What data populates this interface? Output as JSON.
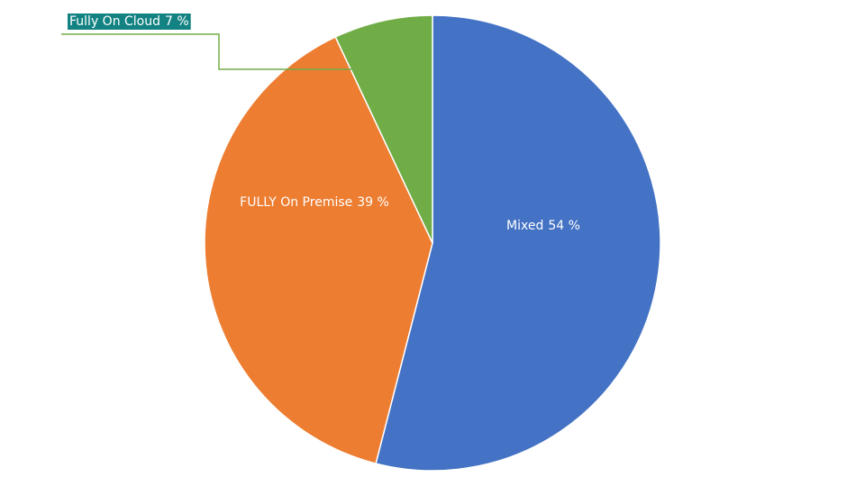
{
  "chart_data": {
    "type": "pie",
    "categories": [
      "Mixed",
      "FULLY On Premise",
      "Fully On Cloud"
    ],
    "values": [
      54,
      39,
      7
    ],
    "value_labels": [
      "54 %",
      "39 %",
      "7 %"
    ],
    "colors": [
      "#4472c4",
      "#ed7d31",
      "#70ad47"
    ]
  }
}
